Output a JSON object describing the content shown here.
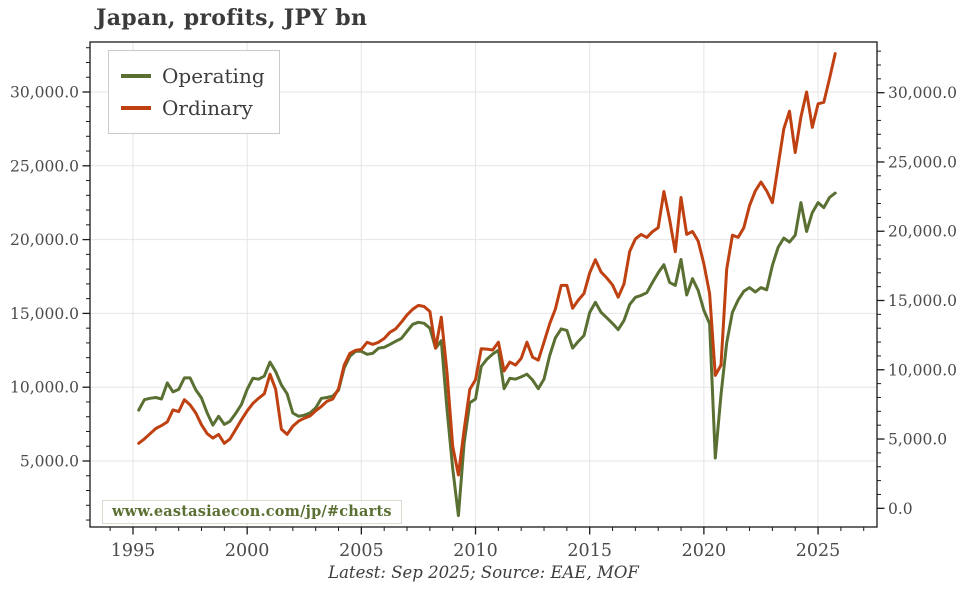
{
  "title": "Japan, profits, JPY bn",
  "watermark": "www.eastasiaecon.com/jp/#charts",
  "caption": "Latest: Sep 2025; Source: EAE, MOF",
  "colors": {
    "operating": "#5a7032",
    "ordinary": "#bf4112",
    "grid": "#e5e5e5",
    "axis": "#1a1a1a",
    "tick_label": "#4b4b4b"
  },
  "legend": [
    {
      "label": "Operating",
      "color": "#5a7032"
    },
    {
      "label": "Ordinary",
      "color": "#bf4112"
    }
  ],
  "chart_data": {
    "type": "line",
    "title": "Japan, profits, JPY bn",
    "unit": "JPY bn",
    "grid": true,
    "legend_position": "upper left",
    "x_axis": {
      "label_years": [
        1995,
        2000,
        2005,
        2010,
        2015,
        2020,
        2025
      ],
      "labels": [
        "1995",
        "2000",
        "2005",
        "2010",
        "2015",
        "2020",
        "2025"
      ],
      "minor_tick_step_years": 1,
      "range": [
        1993.1,
        2027.6
      ]
    },
    "y_axis_left": {
      "values": [
        5000,
        10000,
        15000,
        20000,
        25000,
        30000
      ],
      "labels": [
        "5,000.0",
        "10,000.0",
        "15,000.0",
        "20,000.0",
        "25,000.0",
        "30,000.0"
      ],
      "minor_tick_step": 1000,
      "range": [
        500,
        33400
      ]
    },
    "y_axis_right": {
      "values": [
        0,
        5000,
        10000,
        15000,
        20000,
        25000,
        30000
      ],
      "labels": [
        "0.0",
        "5,000.0",
        "10,000.0",
        "15,000.0",
        "20,000.0",
        "25,000.0",
        "30,000.0"
      ],
      "minor_tick_step": 1000,
      "range": [
        -1400,
        33600
      ]
    },
    "series": [
      {
        "name": "Operating",
        "color": "#5a7032",
        "axis": "left",
        "points": [
          [
            1995.25,
            8450
          ],
          [
            1995.5,
            9150
          ],
          [
            1995.75,
            9250
          ],
          [
            1996.0,
            9300
          ],
          [
            1996.25,
            9200
          ],
          [
            1996.5,
            10290
          ],
          [
            1996.75,
            9680
          ],
          [
            1997.0,
            9850
          ],
          [
            1997.25,
            10630
          ],
          [
            1997.5,
            10630
          ],
          [
            1997.75,
            9820
          ],
          [
            1998.0,
            9270
          ],
          [
            1998.25,
            8250
          ],
          [
            1998.5,
            7430
          ],
          [
            1998.75,
            8030
          ],
          [
            1999.0,
            7480
          ],
          [
            1999.25,
            7690
          ],
          [
            1999.5,
            8230
          ],
          [
            1999.75,
            8840
          ],
          [
            2000.0,
            9860
          ],
          [
            2000.25,
            10610
          ],
          [
            2000.5,
            10540
          ],
          [
            2000.75,
            10750
          ],
          [
            2001.0,
            11700
          ],
          [
            2001.25,
            11050
          ],
          [
            2001.5,
            10150
          ],
          [
            2001.75,
            9550
          ],
          [
            2002.0,
            8250
          ],
          [
            2002.25,
            8030
          ],
          [
            2002.5,
            8100
          ],
          [
            2002.75,
            8250
          ],
          [
            2003.0,
            8600
          ],
          [
            2003.25,
            9250
          ],
          [
            2003.5,
            9300
          ],
          [
            2003.75,
            9400
          ],
          [
            2004.0,
            9800
          ],
          [
            2004.25,
            11300
          ],
          [
            2004.5,
            12100
          ],
          [
            2004.75,
            12430
          ],
          [
            2005.0,
            12430
          ],
          [
            2005.25,
            12230
          ],
          [
            2005.5,
            12300
          ],
          [
            2005.75,
            12640
          ],
          [
            2006.0,
            12700
          ],
          [
            2006.25,
            12900
          ],
          [
            2006.5,
            13110
          ],
          [
            2006.75,
            13300
          ],
          [
            2007.0,
            13790
          ],
          [
            2007.25,
            14260
          ],
          [
            2007.5,
            14400
          ],
          [
            2007.75,
            14330
          ],
          [
            2008.0,
            14000
          ],
          [
            2008.25,
            12640
          ],
          [
            2008.5,
            13150
          ],
          [
            2008.75,
            8500
          ],
          [
            2009.0,
            4500
          ],
          [
            2009.25,
            1300
          ],
          [
            2009.5,
            6200
          ],
          [
            2009.75,
            8940
          ],
          [
            2010.0,
            9200
          ],
          [
            2010.25,
            11400
          ],
          [
            2010.5,
            11900
          ],
          [
            2010.75,
            12250
          ],
          [
            2011.0,
            12500
          ],
          [
            2011.25,
            9900
          ],
          [
            2011.5,
            10600
          ],
          [
            2011.75,
            10550
          ],
          [
            2012.0,
            10700
          ],
          [
            2012.25,
            10880
          ],
          [
            2012.5,
            10480
          ],
          [
            2012.75,
            9900
          ],
          [
            2013.0,
            10550
          ],
          [
            2013.25,
            12150
          ],
          [
            2013.5,
            13350
          ],
          [
            2013.75,
            13950
          ],
          [
            2014.0,
            13850
          ],
          [
            2014.25,
            12650
          ],
          [
            2014.5,
            13100
          ],
          [
            2014.75,
            13500
          ],
          [
            2015.0,
            15070
          ],
          [
            2015.25,
            15750
          ],
          [
            2015.5,
            15070
          ],
          [
            2015.75,
            14700
          ],
          [
            2016.0,
            14320
          ],
          [
            2016.25,
            13900
          ],
          [
            2016.5,
            14520
          ],
          [
            2016.75,
            15600
          ],
          [
            2017.0,
            16090
          ],
          [
            2017.25,
            16220
          ],
          [
            2017.5,
            16400
          ],
          [
            2017.75,
            17100
          ],
          [
            2018.0,
            17750
          ],
          [
            2018.25,
            18300
          ],
          [
            2018.5,
            17100
          ],
          [
            2018.75,
            16900
          ],
          [
            2019.0,
            18650
          ],
          [
            2019.25,
            16250
          ],
          [
            2019.5,
            17350
          ],
          [
            2019.75,
            16550
          ],
          [
            2020.0,
            15200
          ],
          [
            2020.25,
            14300
          ],
          [
            2020.5,
            5200
          ],
          [
            2020.75,
            9500
          ],
          [
            2021.0,
            13000
          ],
          [
            2021.25,
            15070
          ],
          [
            2021.5,
            15900
          ],
          [
            2021.75,
            16500
          ],
          [
            2022.0,
            16750
          ],
          [
            2022.25,
            16450
          ],
          [
            2022.5,
            16750
          ],
          [
            2022.75,
            16600
          ],
          [
            2023.0,
            18250
          ],
          [
            2023.25,
            19470
          ],
          [
            2023.5,
            20100
          ],
          [
            2023.75,
            19830
          ],
          [
            2024.0,
            20300
          ],
          [
            2024.25,
            22510
          ],
          [
            2024.5,
            20550
          ],
          [
            2024.75,
            21830
          ],
          [
            2025.0,
            22510
          ],
          [
            2025.25,
            22170
          ],
          [
            2025.5,
            22850
          ],
          [
            2025.75,
            23150
          ]
        ]
      },
      {
        "name": "Ordinary",
        "color": "#bf4112",
        "axis": "left",
        "points": [
          [
            1995.25,
            6200
          ],
          [
            1995.5,
            6500
          ],
          [
            1995.75,
            6850
          ],
          [
            1996.0,
            7200
          ],
          [
            1996.25,
            7400
          ],
          [
            1996.5,
            7650
          ],
          [
            1996.75,
            8460
          ],
          [
            1997.0,
            8350
          ],
          [
            1997.25,
            9150
          ],
          [
            1997.5,
            8800
          ],
          [
            1997.75,
            8250
          ],
          [
            1998.0,
            7450
          ],
          [
            1998.25,
            6850
          ],
          [
            1998.5,
            6550
          ],
          [
            1998.75,
            6800
          ],
          [
            1999.0,
            6200
          ],
          [
            1999.25,
            6500
          ],
          [
            1999.5,
            7150
          ],
          [
            1999.75,
            7800
          ],
          [
            2000.0,
            8400
          ],
          [
            2000.25,
            8900
          ],
          [
            2000.5,
            9250
          ],
          [
            2000.75,
            9550
          ],
          [
            2001.0,
            10880
          ],
          [
            2001.25,
            9850
          ],
          [
            2001.5,
            7150
          ],
          [
            2001.75,
            6800
          ],
          [
            2002.0,
            7350
          ],
          [
            2002.25,
            7700
          ],
          [
            2002.5,
            7900
          ],
          [
            2002.75,
            8050
          ],
          [
            2003.0,
            8400
          ],
          [
            2003.25,
            8700
          ],
          [
            2003.5,
            9050
          ],
          [
            2003.75,
            9200
          ],
          [
            2004.0,
            9900
          ],
          [
            2004.25,
            11500
          ],
          [
            2004.5,
            12300
          ],
          [
            2004.75,
            12500
          ],
          [
            2005.0,
            12570
          ],
          [
            2005.25,
            13040
          ],
          [
            2005.5,
            12900
          ],
          [
            2005.75,
            13040
          ],
          [
            2006.0,
            13300
          ],
          [
            2006.25,
            13720
          ],
          [
            2006.5,
            13950
          ],
          [
            2006.75,
            14400
          ],
          [
            2007.0,
            14900
          ],
          [
            2007.25,
            15280
          ],
          [
            2007.5,
            15540
          ],
          [
            2007.75,
            15470
          ],
          [
            2008.0,
            15130
          ],
          [
            2008.25,
            12650
          ],
          [
            2008.5,
            14740
          ],
          [
            2008.75,
            11000
          ],
          [
            2009.0,
            6000
          ],
          [
            2009.25,
            4050
          ],
          [
            2009.5,
            7100
          ],
          [
            2009.75,
            9850
          ],
          [
            2010.0,
            10500
          ],
          [
            2010.25,
            12600
          ],
          [
            2010.5,
            12580
          ],
          [
            2010.75,
            12520
          ],
          [
            2011.0,
            13050
          ],
          [
            2011.25,
            11100
          ],
          [
            2011.5,
            11700
          ],
          [
            2011.75,
            11500
          ],
          [
            2012.0,
            11950
          ],
          [
            2012.25,
            13050
          ],
          [
            2012.5,
            12030
          ],
          [
            2012.75,
            11830
          ],
          [
            2013.0,
            13050
          ],
          [
            2013.25,
            14300
          ],
          [
            2013.5,
            15300
          ],
          [
            2013.75,
            16900
          ],
          [
            2014.0,
            16900
          ],
          [
            2014.25,
            15350
          ],
          [
            2014.5,
            15900
          ],
          [
            2014.75,
            16350
          ],
          [
            2015.0,
            17750
          ],
          [
            2015.25,
            18640
          ],
          [
            2015.5,
            17800
          ],
          [
            2015.75,
            17400
          ],
          [
            2016.0,
            16930
          ],
          [
            2016.25,
            16100
          ],
          [
            2016.5,
            17000
          ],
          [
            2016.75,
            19200
          ],
          [
            2017.0,
            20050
          ],
          [
            2017.25,
            20350
          ],
          [
            2017.5,
            20150
          ],
          [
            2017.75,
            20540
          ],
          [
            2018.0,
            20810
          ],
          [
            2018.25,
            23260
          ],
          [
            2018.5,
            21360
          ],
          [
            2018.75,
            19180
          ],
          [
            2019.0,
            22850
          ],
          [
            2019.25,
            20350
          ],
          [
            2019.5,
            20550
          ],
          [
            2019.75,
            19900
          ],
          [
            2020.0,
            18350
          ],
          [
            2020.25,
            16350
          ],
          [
            2020.5,
            10800
          ],
          [
            2020.75,
            11500
          ],
          [
            2021.0,
            18000
          ],
          [
            2021.25,
            20300
          ],
          [
            2021.5,
            20150
          ],
          [
            2021.75,
            20800
          ],
          [
            2022.0,
            22300
          ],
          [
            2022.25,
            23300
          ],
          [
            2022.5,
            23900
          ],
          [
            2022.75,
            23300
          ],
          [
            2023.0,
            22500
          ],
          [
            2023.25,
            25000
          ],
          [
            2023.5,
            27500
          ],
          [
            2023.75,
            28700
          ],
          [
            2024.0,
            25900
          ],
          [
            2024.25,
            28300
          ],
          [
            2024.5,
            30000
          ],
          [
            2024.75,
            27600
          ],
          [
            2025.0,
            29200
          ],
          [
            2025.25,
            29300
          ],
          [
            2025.5,
            30900
          ],
          [
            2025.75,
            32600
          ]
        ]
      }
    ]
  }
}
